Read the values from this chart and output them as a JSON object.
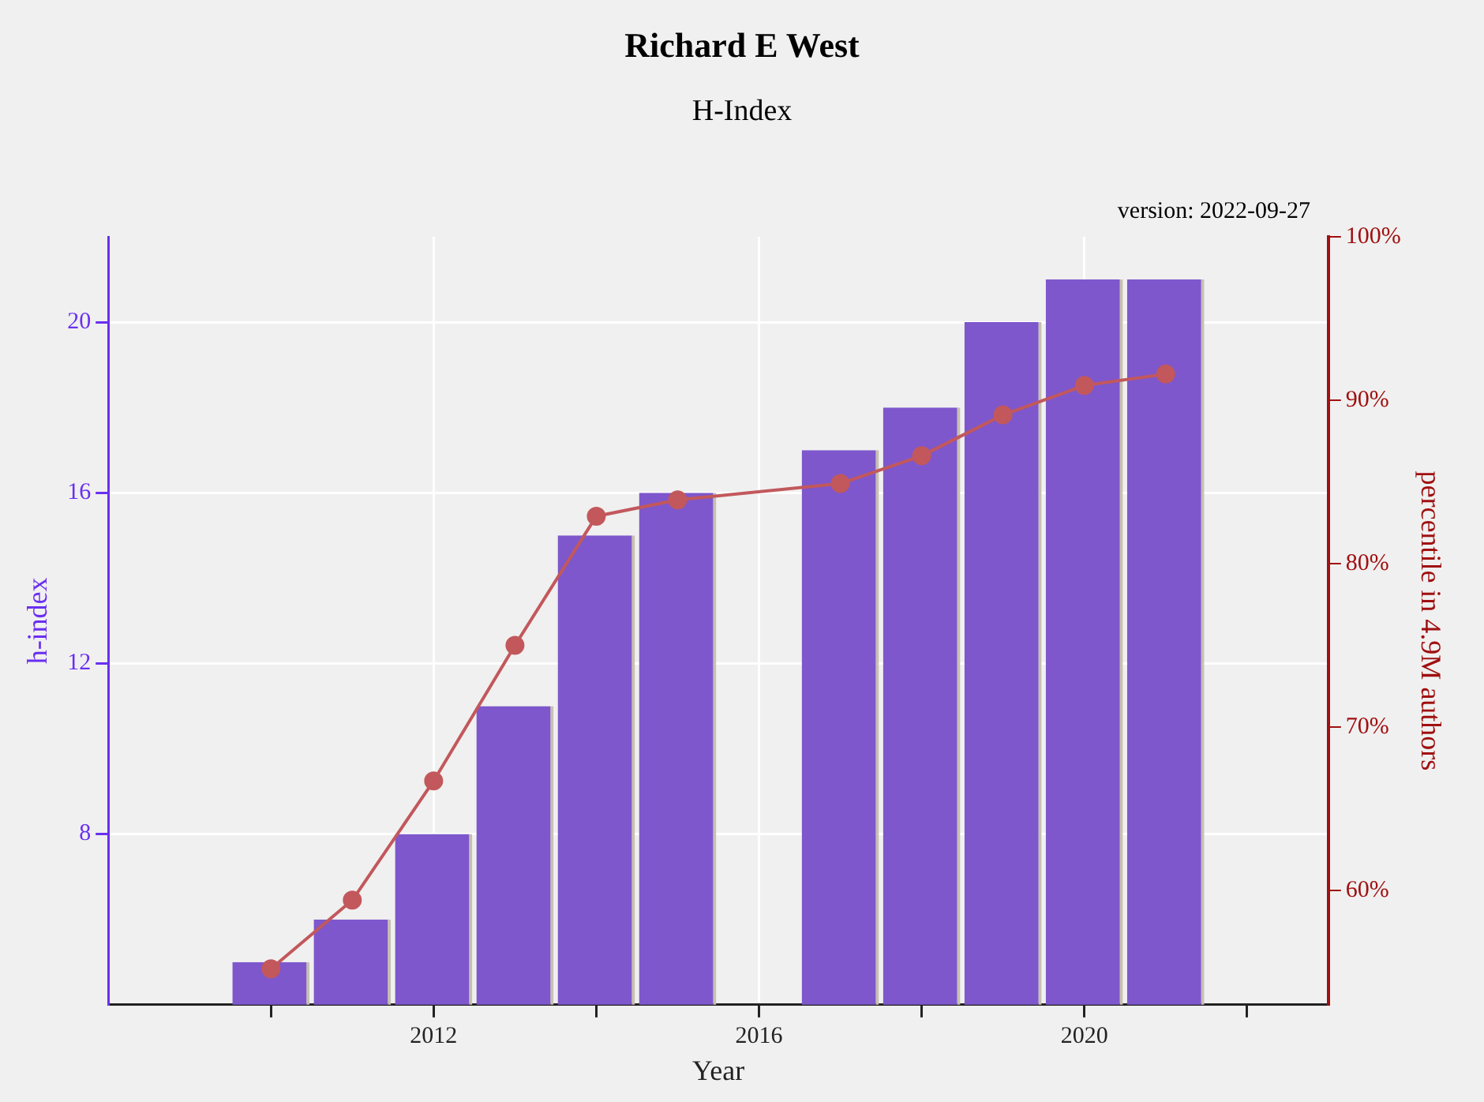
{
  "chart_data": {
    "type": "bar",
    "title": "Richard E West",
    "subtitle": "H-Index",
    "annotations": [
      "version: 2022-09-27"
    ],
    "xlabel": "Year",
    "ylabel": "h-index",
    "y2label": "percentile in 4.9M authors",
    "x": [
      2010,
      2011,
      2012,
      2013,
      2014,
      2015,
      2017,
      2018,
      2019,
      2020,
      2021
    ],
    "series": [
      {
        "color": "#7e57cc",
        "values": [
          5,
          6,
          8,
          11,
          15,
          16,
          17,
          18,
          20,
          21,
          21
        ]
      },
      {
        "type": "line",
        "axis": "y2",
        "color": "#c2585c",
        "values": [
          55.2,
          59.4,
          66.7,
          75.0,
          82.9,
          83.9,
          84.9,
          86.6,
          89.1,
          90.9,
          91.6
        ]
      }
    ],
    "xlim": [
      2008,
      2023
    ],
    "xticks": [
      {
        "value": 2010,
        "label": null
      },
      2012,
      {
        "value": 2014,
        "label": null
      },
      2016,
      {
        "value": 2018,
        "label": null
      },
      2020,
      {
        "value": 2022,
        "label": null
      }
    ],
    "ylim": [
      4,
      22
    ],
    "yticks": [
      8,
      12,
      16,
      20
    ],
    "y2lim": [
      53,
      100
    ],
    "y2ticks": [
      {
        "value": 60,
        "label": "60%"
      },
      {
        "value": 70,
        "label": "70%"
      },
      {
        "value": 80,
        "label": "80%"
      },
      {
        "value": 90,
        "label": "90%"
      },
      {
        "value": 100,
        "label": "100%"
      }
    ],
    "grid": true,
    "marker": "circle",
    "line_style": "solid"
  }
}
